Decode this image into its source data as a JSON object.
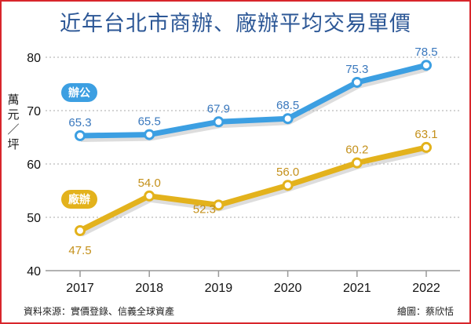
{
  "chart_data": {
    "type": "line",
    "title": "近年台北市商辦、廠辦平均交易單價",
    "ylabel": "萬元／坪",
    "categories": [
      "2017",
      "2018",
      "2019",
      "2020",
      "2021",
      "2022"
    ],
    "ylim": [
      40,
      80
    ],
    "yticks": [
      40,
      50,
      60,
      70,
      80
    ],
    "grid": "horizontal dotted",
    "legend_placement": "inline-left",
    "series": [
      {
        "name": "辦公",
        "values": [
          65.3,
          65.5,
          67.9,
          68.5,
          75.3,
          78.5
        ],
        "color": "#3c9fe2",
        "label_color": "#3a78bd"
      },
      {
        "name": "廠辦",
        "values": [
          47.5,
          54.0,
          52.3,
          56.0,
          60.2,
          63.1
        ],
        "color": "#e3b21c",
        "label_color": "#c4901a"
      }
    ]
  },
  "footer": {
    "source": "資料來源：實價登錄、信義全球資產",
    "credit": "繪圖：蔡欣恬"
  }
}
